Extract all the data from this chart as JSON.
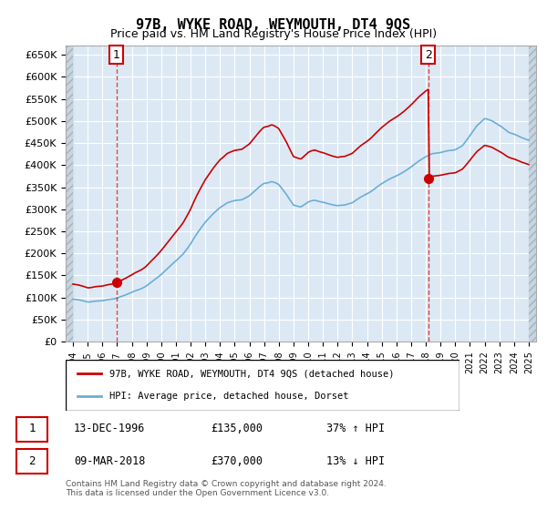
{
  "title": "97B, WYKE ROAD, WEYMOUTH, DT4 9QS",
  "subtitle": "Price paid vs. HM Land Registry's House Price Index (HPI)",
  "legend_line1": "97B, WYKE ROAD, WEYMOUTH, DT4 9QS (detached house)",
  "legend_line2": "HPI: Average price, detached house, Dorset",
  "transaction1": {
    "label": "1",
    "date": "13-DEC-1996",
    "price": 135000,
    "pct": "37% ↑ HPI"
  },
  "transaction2": {
    "label": "2",
    "date": "09-MAR-2018",
    "price": 370000,
    "pct": "13% ↓ HPI"
  },
  "footer": "Contains HM Land Registry data © Crown copyright and database right 2024.\nThis data is licensed under the Open Government Licence v3.0.",
  "hpi_color": "#6baed6",
  "price_color": "#cc0000",
  "background_chart": "#dce9f5",
  "background_hatched": "#c8d8e8",
  "ylim": [
    0,
    670000
  ],
  "yticks": [
    0,
    50000,
    100000,
    150000,
    200000,
    250000,
    300000,
    350000,
    400000,
    450000,
    500000,
    550000,
    600000,
    650000
  ],
  "xlim_start": 1993.5,
  "xlim_end": 2025.5
}
